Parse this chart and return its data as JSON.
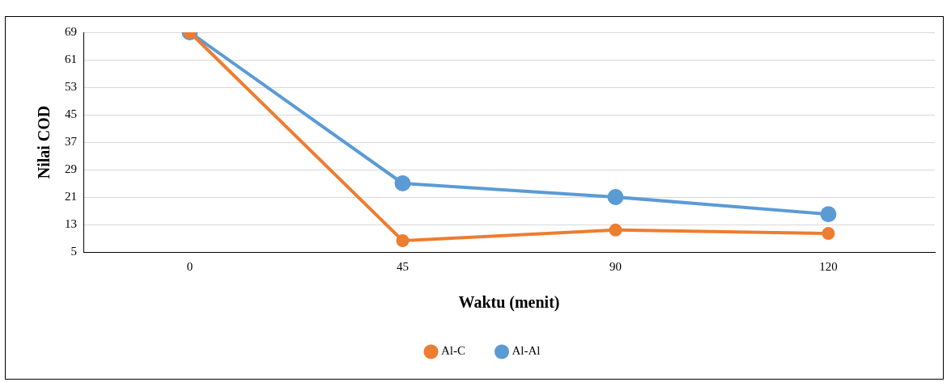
{
  "chart_data": {
    "type": "line",
    "xlabel": "Waktu (menit)",
    "ylabel": "Nilai COD",
    "categories": [
      "0",
      "45",
      "90",
      "120"
    ],
    "series": [
      {
        "name": "Al-Al",
        "color": "#5b9bd5",
        "values": [
          69,
          25,
          21,
          16
        ]
      },
      {
        "name": "Al-C",
        "color": "#ed7d31",
        "values": [
          69,
          8.3,
          11.4,
          10.4
        ]
      }
    ],
    "ylim": [
      5,
      69
    ],
    "yticks": [
      5,
      13,
      21,
      29,
      37,
      45,
      53,
      61,
      69
    ],
    "grid": "y",
    "legend": "bottom",
    "marker": "circle",
    "line_style": "solid"
  }
}
